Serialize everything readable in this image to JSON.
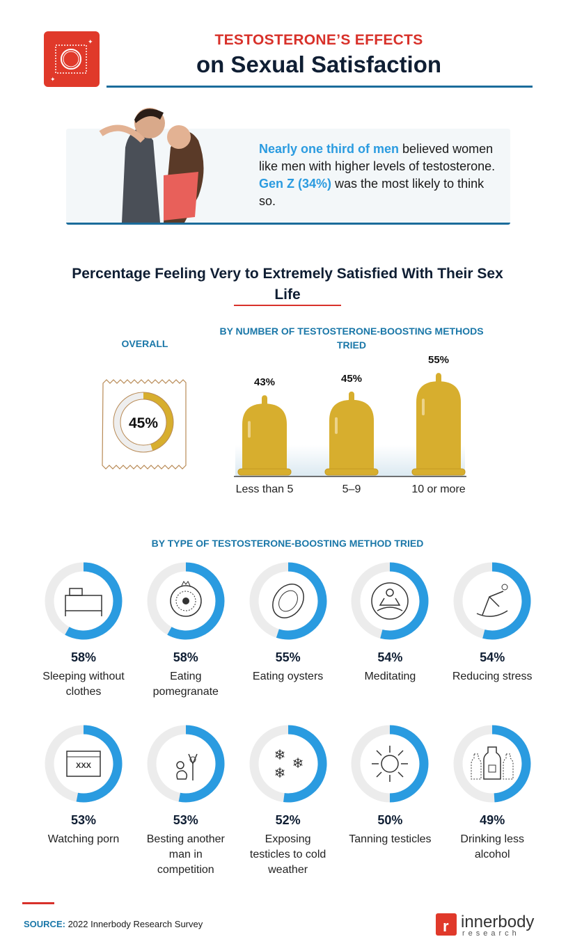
{
  "header": {
    "title_line1": "TESTOSTERONE’S EFFECTS",
    "title_line2": "on Sexual Satisfaction",
    "logo_icon": "condom-wrapper-icon"
  },
  "callout": {
    "highlight1": "Nearly one third of men",
    "text1": " believed women like men with higher levels of testosterone. ",
    "highlight2": "Gen Z (34%)",
    "text2": " was the most likely to think so."
  },
  "section": {
    "title": "Percentage Feeling Very to Extremely Satisfied With Their Sex Life"
  },
  "colors": {
    "red": "#d8312a",
    "navy": "#0f1e33",
    "blue": "#2a9be0",
    "heading_blue": "#1a77a8",
    "gold": "#d7ae2e",
    "ring_grey": "#ececec"
  },
  "chart_data": [
    {
      "type": "pie",
      "title": "OVERALL",
      "values": [
        45
      ],
      "labels": [
        "45%"
      ]
    },
    {
      "type": "bar",
      "title": "BY NUMBER OF TESTOSTERONE-BOOSTING METHODS TRIED",
      "categories": [
        "Less than 5",
        "5–9",
        "10 or more"
      ],
      "values": [
        43,
        45,
        55
      ],
      "labels": [
        "43%",
        "45%",
        "55%"
      ]
    },
    {
      "type": "pie",
      "title": "BY TYPE OF TESTOSTERONE-BOOSTING METHOD TRIED",
      "items": [
        {
          "label": "Sleeping without clothes",
          "value": 58,
          "pct": "58%",
          "icon": "bed-icon"
        },
        {
          "label": "Eating pomegranate",
          "value": 58,
          "pct": "58%",
          "icon": "pomegranate-icon"
        },
        {
          "label": "Eating oysters",
          "value": 55,
          "pct": "55%",
          "icon": "oyster-icon"
        },
        {
          "label": "Meditating",
          "value": 54,
          "pct": "54%",
          "icon": "meditation-icon"
        },
        {
          "label": "Reducing stress",
          "value": 54,
          "pct": "54%",
          "icon": "rocking-chair-icon"
        },
        {
          "label": "Watching porn",
          "value": 53,
          "pct": "53%",
          "icon": "browser-xxx-icon",
          "icon_text": "XXX"
        },
        {
          "label": "Besting another man in competition",
          "value": 53,
          "pct": "53%",
          "icon": "victory-icon"
        },
        {
          "label": "Exposing testicles to cold weather",
          "value": 52,
          "pct": "52%",
          "icon": "snowflake-icon"
        },
        {
          "label": "Tanning testicles",
          "value": 50,
          "pct": "50%",
          "icon": "sun-icon"
        },
        {
          "label": "Drinking less alcohol",
          "value": 49,
          "pct": "49%",
          "icon": "bottles-icon"
        }
      ]
    }
  ],
  "footer": {
    "source_label": "SOURCE:",
    "source_text": " 2022 Innerbody Research Survey",
    "brand": "innerbody",
    "brand_sub": "research"
  }
}
